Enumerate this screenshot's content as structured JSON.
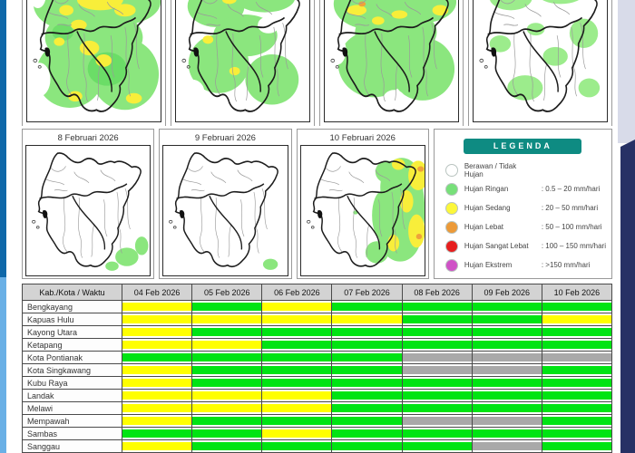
{
  "maps": {
    "panels": [
      {
        "label": "8 Februari 2026"
      },
      {
        "label": "9 Februari 2026"
      },
      {
        "label": "10 Februari 2026"
      }
    ]
  },
  "legend": {
    "title": "LEGENDA",
    "title_color": "#0e8b82",
    "items": [
      {
        "name": "Berawan / Tidak Hujan",
        "range": "",
        "color": "#ffffff"
      },
      {
        "name": "Hujan Ringan",
        "range": ": 0.5 – 20 mm/hari",
        "color": "#77e079"
      },
      {
        "name": "Hujan Sedang",
        "range": ": 20 – 50 mm/hari",
        "color": "#fcf73a"
      },
      {
        "name": "Hujan Lebat",
        "range": ": 50 – 100 mm/hari",
        "color": "#ec9a38"
      },
      {
        "name": "Hujan Sangat Lebat",
        "range": ": 100 – 150 mm/hari",
        "color": "#e61e1e"
      },
      {
        "name": "Hujan Ekstrem",
        "range": ": >150 mm/hari",
        "color": "#cf52c6"
      }
    ]
  },
  "table": {
    "corner": "Kab./Kota / Waktu",
    "columns": [
      "04 Feb 2026",
      "05 Feb 2026",
      "06 Feb 2026",
      "07 Feb 2026",
      "08 Feb 2026",
      "09 Feb 2026",
      "10 Feb 2026"
    ],
    "cell_colors": {
      "green": "#00e413",
      "yellow": "#ffff00",
      "gray": "#a9a9a9"
    },
    "rows": [
      {
        "name": "Bengkayang",
        "cells": [
          "yellow",
          "green",
          "yellow",
          "green",
          "green",
          "green",
          "green"
        ]
      },
      {
        "name": "Kapuas Hulu",
        "cells": [
          "yellow",
          "yellow",
          "yellow",
          "yellow",
          "green",
          "green",
          "yellow"
        ]
      },
      {
        "name": "Kayong Utara",
        "cells": [
          "yellow",
          "green",
          "green",
          "green",
          "green",
          "green",
          "green"
        ]
      },
      {
        "name": "Ketapang",
        "cells": [
          "yellow",
          "yellow",
          "green",
          "green",
          "green",
          "green",
          "green"
        ]
      },
      {
        "name": "Kota Pontianak",
        "cells": [
          "green",
          "green",
          "green",
          "green",
          "gray",
          "gray",
          "gray"
        ]
      },
      {
        "name": "Kota Singkawang",
        "cells": [
          "yellow",
          "green",
          "green",
          "green",
          "gray",
          "gray",
          "green"
        ]
      },
      {
        "name": "Kubu Raya",
        "cells": [
          "yellow",
          "green",
          "green",
          "green",
          "green",
          "green",
          "green"
        ]
      },
      {
        "name": "Landak",
        "cells": [
          "yellow",
          "yellow",
          "yellow",
          "green",
          "green",
          "green",
          "green"
        ]
      },
      {
        "name": "Melawi",
        "cells": [
          "yellow",
          "yellow",
          "yellow",
          "green",
          "green",
          "green",
          "green"
        ]
      },
      {
        "name": "Mempawah",
        "cells": [
          "yellow",
          "green",
          "green",
          "green",
          "gray",
          "gray",
          "green"
        ]
      },
      {
        "name": "Sambas",
        "cells": [
          "green",
          "green",
          "yellow",
          "green",
          "green",
          "green",
          "green"
        ]
      },
      {
        "name": "Sanggau",
        "cells": [
          "yellow",
          "green",
          "green",
          "green",
          "green",
          "gray",
          "green"
        ]
      },
      {
        "name": "",
        "cells": [
          "yellow",
          "yellow",
          "green",
          "green",
          "green",
          "green",
          "green"
        ]
      }
    ]
  },
  "colors": {
    "accent_navy": "#273165",
    "accent_blue_dark": "#0f68a9",
    "accent_blue_light": "#6ab0e6",
    "accent_lavender": "#d8dbe9"
  }
}
